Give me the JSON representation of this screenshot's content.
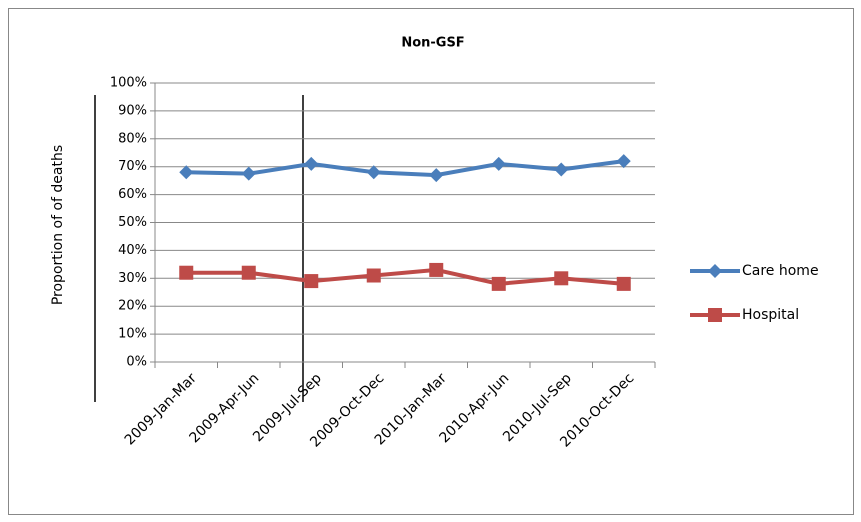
{
  "chart_data": {
    "type": "line",
    "title": "Non-GSF",
    "ylabel": "Proportion of of deaths",
    "categories": [
      "2009-Jan-Mar",
      "2009-Apr-Jun",
      "2009-Jul-Sep",
      "2009-Oct-Dec",
      "2010-Jan-Mar",
      "2010-Apr-Jun",
      "2010-Jul-Sep",
      "2010-Oct-Dec"
    ],
    "series": [
      {
        "name": "Care home",
        "color": "#4a7ebb",
        "marker": "diamond",
        "values": [
          68,
          67.5,
          71,
          68,
          67,
          71,
          69,
          72
        ]
      },
      {
        "name": "Hospital",
        "color": "#be4b48",
        "marker": "square",
        "values": [
          32,
          32,
          29,
          31,
          33,
          28,
          30,
          28
        ]
      }
    ],
    "ylim": [
      0,
      100
    ],
    "yticks": [
      {
        "value": 0,
        "label": "0%"
      },
      {
        "value": 10,
        "label": "10%"
      },
      {
        "value": 20,
        "label": "20%"
      },
      {
        "value": 30,
        "label": "30%"
      },
      {
        "value": 40,
        "label": "40%"
      },
      {
        "value": 50,
        "label": "50%"
      },
      {
        "value": 60,
        "label": "60%"
      },
      {
        "value": 70,
        "label": "70%"
      },
      {
        "value": 80,
        "label": "80%"
      },
      {
        "value": 90,
        "label": "90%"
      },
      {
        "value": 100,
        "label": "100%"
      }
    ],
    "grid": true,
    "legend": "right"
  }
}
